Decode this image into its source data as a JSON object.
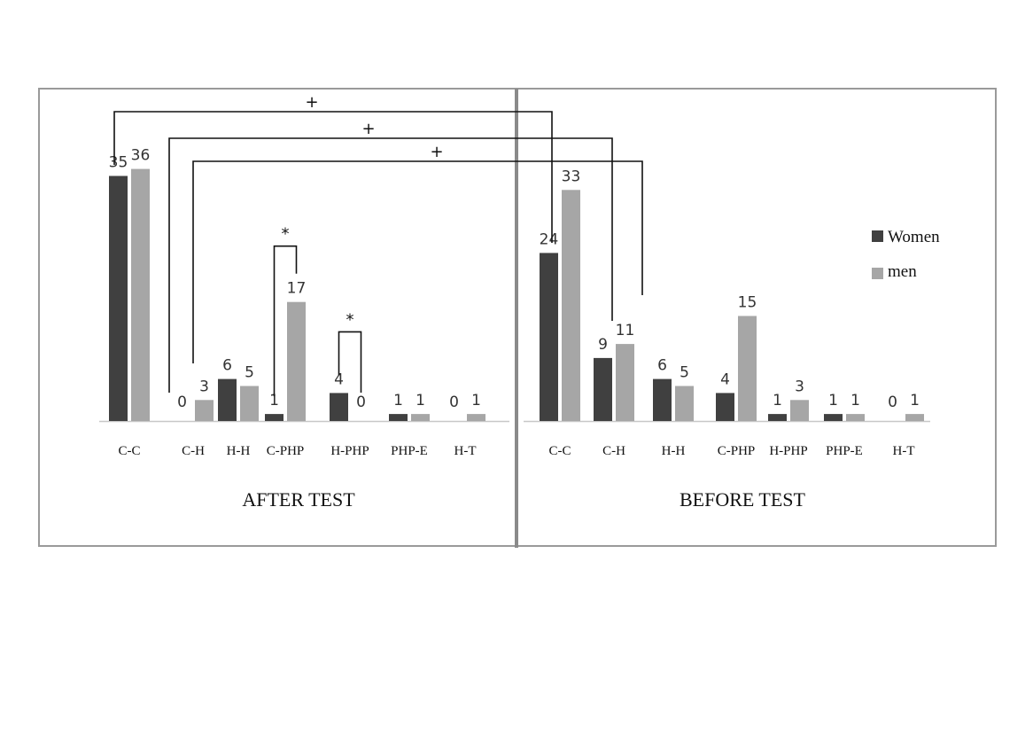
{
  "chart_data": [
    {
      "type": "bar",
      "title": "AFTER TEST",
      "categories": [
        "C-C",
        "C-H",
        "H-H",
        "C-PHP",
        "H-PHP",
        "PHP-E",
        "H-T"
      ],
      "series": [
        {
          "name": "Women",
          "values": [
            35,
            0,
            6,
            1,
            4,
            1,
            0
          ]
        },
        {
          "name": "men",
          "values": [
            36,
            3,
            5,
            17,
            0,
            1,
            1
          ]
        }
      ],
      "ylim": [
        0,
        36
      ],
      "grid": false,
      "annotations": [
        {
          "category": "C-PHP",
          "label": "*"
        },
        {
          "category": "H-PHP",
          "label": "*"
        }
      ]
    },
    {
      "type": "bar",
      "title": "BEFORE TEST",
      "categories": [
        "C-C",
        "C-H",
        "H-H",
        "C-PHP",
        "H-PHP",
        "PHP-E",
        "H-T"
      ],
      "series": [
        {
          "name": "Women",
          "values": [
            24,
            9,
            6,
            4,
            1,
            1,
            0
          ]
        },
        {
          "name": "men",
          "values": [
            33,
            11,
            5,
            15,
            3,
            1,
            1
          ]
        }
      ],
      "ylim": [
        0,
        36
      ],
      "grid": false,
      "legend": "right"
    }
  ],
  "cross_annotations": [
    {
      "label": "+",
      "from": "AFTER TEST C-C",
      "to": "BEFORE TEST C-C"
    },
    {
      "label": "+",
      "from": "AFTER TEST C-H",
      "to": "BEFORE TEST C-H"
    },
    {
      "label": "+",
      "from": "AFTER TEST C-H",
      "to": "BEFORE TEST C-H"
    }
  ],
  "legend": {
    "items": [
      {
        "label": "Women",
        "color": "#404040"
      },
      {
        "label": "men",
        "color": "#a6a6a6"
      }
    ]
  },
  "colors": {
    "women": "#404040",
    "men": "#a6a6a6",
    "frame": "#9a9a9a",
    "divider": "#8a8a8a"
  }
}
